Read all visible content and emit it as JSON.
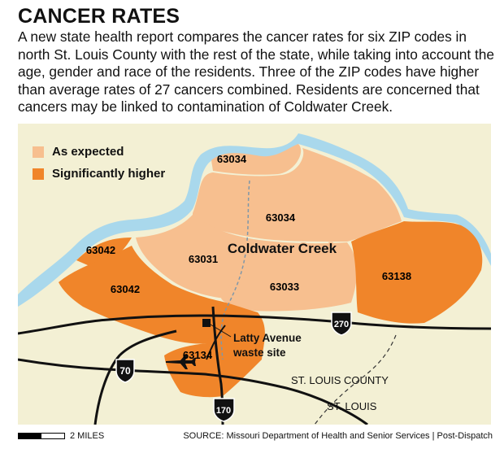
{
  "title": "CANCER RATES",
  "description": "A new state health report compares the cancer rates for six ZIP codes in north St. Louis County with the rest of the state, while taking into account the age, gender and race of the residents. Three of the ZIP codes have higher than average rates of 27 cancers combined. Residents are concerned that cancers may be linked to contamination of Coldwater Creek.",
  "legend": [
    {
      "label": "As expected",
      "color": "#f7bf8f"
    },
    {
      "label": "Significantly higher",
      "color": "#f0852a"
    }
  ],
  "colors": {
    "river": "#a9d8ec",
    "background": "#f3f0d4",
    "road": "#111111"
  },
  "zips": {
    "z63034_north": "63034",
    "z63034": "63034",
    "z63042_north": "63042",
    "z63031": "63031",
    "z63042": "63042",
    "z63033": "63033",
    "z63138": "63138",
    "z63134": "63134"
  },
  "labels": {
    "creek": "Coldwater Creek",
    "site_line1": "Latty Avenue",
    "site_line2": "waste site",
    "county": "ST. LOUIS COUNTY",
    "city": "ST. LOUIS"
  },
  "highways": {
    "i270": "270",
    "i70": "70",
    "i170": "170"
  },
  "icons": {
    "airport": "airplane-icon",
    "site": "waste-site-square-icon"
  },
  "scale": "2 MILES",
  "source": "SOURCE: Missouri Department of Health and Senior Services | Post-Dispatch"
}
